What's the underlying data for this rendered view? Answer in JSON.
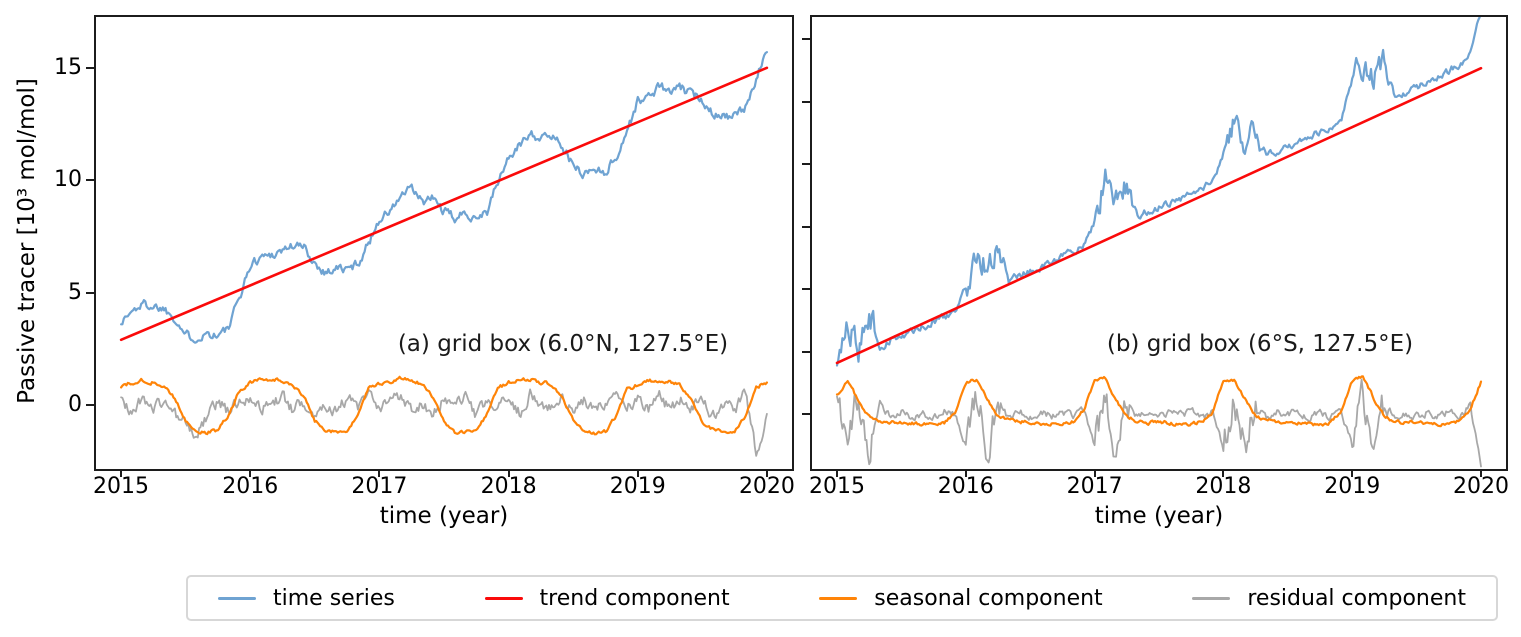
{
  "figure": {
    "background": "#ffffff",
    "axis_color": "#1c1c1c",
    "text_color": "#000000",
    "seed": 1337
  },
  "legend": {
    "items": [
      {
        "label": "time series",
        "color": "#6FA3D2"
      },
      {
        "label": "trend component",
        "color": "#FA0A0A"
      },
      {
        "label": "seasonal component",
        "color": "#FF8408"
      },
      {
        "label": "residual component",
        "color": "#A8A8A8"
      }
    ]
  },
  "chart_data": [
    {
      "type": "line",
      "panel": "a",
      "annotation": "(a) grid box (6.0°N, 127.5°E)",
      "xlabel": "time (year)",
      "ylabel": "Passive tracer [10³ mol/mol]",
      "xlim": [
        2014.806,
        2020.194
      ],
      "ylim": [
        -2.85,
        17.26
      ],
      "xticks": {
        "values": [
          2015,
          2016,
          2017,
          2018,
          2019,
          2020
        ],
        "labels": [
          "2015",
          "2016",
          "2017",
          "2018",
          "2019",
          "2020"
        ]
      },
      "yticks": {
        "values": [
          0,
          5,
          10,
          15
        ],
        "labels": [
          "0",
          "5",
          "10",
          "15"
        ]
      },
      "series": [
        {
          "name": "time series",
          "color": "#6FA3D2",
          "width": 2.2,
          "t0": 2015,
          "dt": 0.0833333,
          "noise": 0.18,
          "monthly": [
            3.7,
            4.15,
            4.5,
            4.4,
            4.3,
            3.9,
            3.1,
            3.0,
            3.2,
            3.1,
            3.4,
            4.8,
            6.2,
            6.6,
            6.7,
            6.9,
            7.1,
            7.0,
            6.3,
            5.9,
            6.1,
            6.0,
            6.3,
            7.2,
            8.3,
            8.6,
            9.3,
            9.6,
            9.0,
            9.2,
            8.6,
            8.3,
            8.5,
            8.4,
            8.6,
            9.9,
            11.0,
            11.5,
            12.2,
            11.8,
            12.0,
            11.6,
            10.6,
            10.3,
            10.5,
            10.4,
            11.0,
            12.2,
            13.5,
            13.7,
            14.2,
            13.9,
            14.1,
            13.8,
            13.6,
            13.0,
            12.9,
            12.8,
            13.2,
            14.6,
            15.7
          ]
        },
        {
          "name": "residual component",
          "color": "#A8A8A8",
          "width": 1.8,
          "t0": 2015,
          "dt": 0.0833333,
          "noise": 0.24,
          "monthly": [
            0.1,
            -0.25,
            0.3,
            -0.15,
            0.2,
            -0.4,
            -0.9,
            -1.4,
            -0.5,
            0.15,
            -0.3,
            0.2,
            0.45,
            -0.2,
            0.1,
            0.35,
            -0.3,
            0.2,
            -0.5,
            0.1,
            -0.25,
            0.3,
            -0.15,
            0.4,
            -0.3,
            0.2,
            0.5,
            -0.2,
            0.1,
            -0.45,
            0.25,
            -0.1,
            0.35,
            -0.55,
            0.15,
            -0.2,
            0.3,
            -0.35,
            0.45,
            0.1,
            -0.2,
            0.3,
            -0.4,
            0.15,
            -0.3,
            0.2,
            0.5,
            -0.15,
            0.25,
            -0.3,
            0.4,
            -0.2,
            0.35,
            -0.1,
            0.2,
            -0.45,
            0.1,
            -0.25,
            0.55,
            -2.2,
            -0.4
          ]
        },
        {
          "name": "seasonal component",
          "color": "#FF8408",
          "width": 2.2,
          "t0": 2015,
          "dt": 0.0833333,
          "noise": 0.07,
          "monthly": [
            0.85,
            1.0,
            1.1,
            1.0,
            0.85,
            0.3,
            -0.75,
            -1.15,
            -1.25,
            -1.1,
            -0.45,
            0.65,
            1.0,
            1.1,
            1.15,
            1.05,
            0.9,
            0.35,
            -0.7,
            -1.1,
            -1.2,
            -1.15,
            -0.5,
            0.7,
            0.95,
            1.05,
            1.2,
            1.1,
            0.9,
            0.3,
            -0.8,
            -1.2,
            -1.25,
            -1.1,
            -0.4,
            0.75,
            1.0,
            1.1,
            1.15,
            1.0,
            0.95,
            0.4,
            -0.7,
            -1.15,
            -1.3,
            -1.2,
            -0.45,
            0.7,
            0.9,
            1.05,
            1.1,
            1.05,
            0.85,
            0.3,
            -0.75,
            -1.1,
            -1.2,
            -1.15,
            -0.5,
            0.8,
            1.0
          ]
        },
        {
          "name": "trend component",
          "color": "#FA0A0A",
          "width": 2.6,
          "points": [
            [
              2015,
              2.9
            ],
            [
              2020,
              15.0
            ]
          ]
        }
      ]
    },
    {
      "type": "line",
      "panel": "b",
      "annotation": "(b) grid box (6°S, 127.5°E)",
      "xlabel": "time (year)",
      "ylabel": "Passive tracer [10³ mol/mol]",
      "xlim": [
        2014.806,
        2020.194
      ],
      "ylim": [
        -2.2,
        15.9
      ],
      "xticks": {
        "values": [
          2015,
          2016,
          2017,
          2018,
          2019,
          2020
        ],
        "labels": [
          "2015",
          "2016",
          "2017",
          "2018",
          "2019",
          "2020"
        ]
      },
      "yticks": {
        "values": [
          0,
          2.5,
          5,
          7.5,
          10,
          12.5,
          15
        ],
        "labels": []
      },
      "series": [
        {
          "name": "time series",
          "color": "#6FA3D2",
          "width": 2.2,
          "t0": 2015,
          "dt": 0.0833333,
          "noise": 0.12,
          "burst": {
            "window": [
              0.0,
              0.3
            ],
            "amp": 0.4
          },
          "monthly": [
            2.1,
            3.9,
            2.7,
            4.3,
            2.6,
            2.95,
            3.15,
            3.35,
            3.5,
            3.7,
            3.9,
            4.15,
            5.1,
            6.5,
            6.0,
            6.6,
            5.35,
            5.55,
            5.75,
            5.9,
            6.1,
            6.3,
            6.5,
            6.8,
            7.7,
            9.2,
            8.4,
            9.0,
            7.95,
            8.1,
            8.25,
            8.45,
            8.6,
            8.8,
            9.0,
            9.35,
            10.4,
            11.7,
            11.1,
            11.6,
            10.4,
            10.55,
            10.75,
            10.9,
            11.1,
            11.3,
            11.5,
            11.85,
            13.4,
            14.1,
            13.6,
            14.0,
            12.7,
            12.9,
            13.1,
            13.3,
            13.5,
            13.75,
            14.0,
            14.4,
            16.2
          ]
        },
        {
          "name": "residual component",
          "color": "#A8A8A8",
          "width": 1.8,
          "t0": 2015,
          "dt": 0.0833333,
          "noise": 0.13,
          "burst": {
            "window": [
              0.0,
              0.28
            ],
            "amp": 0.45
          },
          "monthly": [
            0.3,
            -1.2,
            0.9,
            -1.5,
            0.4,
            -0.1,
            0.1,
            -0.1,
            0.05,
            -0.1,
            0.1,
            -0.05,
            -1.3,
            0.8,
            -1.6,
            0.5,
            -0.2,
            0.1,
            -0.1,
            0.05,
            -0.1,
            0.1,
            -0.05,
            0.15,
            -1.2,
            0.9,
            -1.7,
            0.4,
            -0.15,
            0.05,
            -0.1,
            0.1,
            -0.05,
            0.1,
            -0.1,
            0.05,
            -1.4,
            0.85,
            -1.5,
            0.45,
            -0.2,
            0.1,
            -0.05,
            0.1,
            -0.1,
            0.05,
            -0.1,
            0.1,
            -1.3,
            0.95,
            -1.6,
            0.5,
            -0.15,
            0.05,
            -0.1,
            0.05,
            -0.1,
            0.1,
            -0.05,
            0.3,
            -2.1
          ]
        },
        {
          "name": "seasonal component",
          "color": "#FF8408",
          "width": 2.2,
          "t0": 2015,
          "dt": 0.0833333,
          "noise": 0.06,
          "monthly": [
            0.8,
            1.3,
            0.55,
            -0.1,
            -0.25,
            -0.3,
            -0.35,
            -0.35,
            -0.4,
            -0.4,
            -0.35,
            0.1,
            1.25,
            1.4,
            0.6,
            -0.05,
            -0.25,
            -0.3,
            -0.35,
            -0.4,
            -0.4,
            -0.35,
            -0.3,
            0.15,
            1.3,
            1.45,
            0.55,
            -0.1,
            -0.3,
            -0.35,
            -0.3,
            -0.35,
            -0.45,
            -0.4,
            -0.3,
            0.1,
            1.35,
            1.4,
            0.6,
            -0.05,
            -0.25,
            -0.3,
            -0.4,
            -0.35,
            -0.4,
            -0.45,
            -0.35,
            0.15,
            1.3,
            1.5,
            0.65,
            -0.1,
            -0.3,
            -0.35,
            -0.35,
            -0.4,
            -0.4,
            -0.35,
            -0.3,
            0.2,
            1.3
          ]
        },
        {
          "name": "trend component",
          "color": "#FA0A0A",
          "width": 2.6,
          "points": [
            [
              2015,
              2.05
            ],
            [
              2020,
              13.85
            ]
          ]
        }
      ]
    }
  ]
}
